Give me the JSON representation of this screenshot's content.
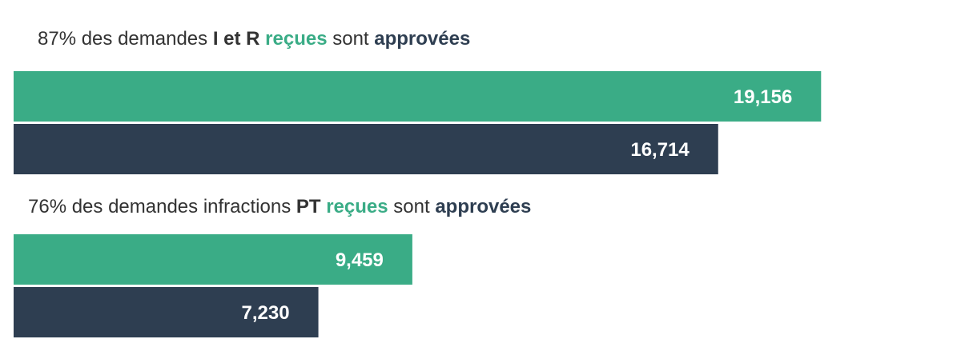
{
  "chart_data": [
    {
      "type": "bar",
      "orientation": "horizontal",
      "title_parts": [
        {
          "text": "87% des demandes ",
          "style": "plain"
        },
        {
          "text": "I et R",
          "style": "bold"
        },
        {
          "text": " ",
          "style": "plain"
        },
        {
          "text": "reçues",
          "style": "accent"
        },
        {
          "text": " sont ",
          "style": "plain"
        },
        {
          "text": "approvées",
          "style": "strong"
        }
      ],
      "values": [
        19156,
        16714
      ],
      "value_labels": [
        "19,156",
        "16,714"
      ],
      "colors": [
        "#3aac86",
        "#2e3e51"
      ],
      "xlim": [
        0,
        22000
      ]
    },
    {
      "type": "bar",
      "orientation": "horizontal",
      "title_parts": [
        {
          "text": "76% des demandes infractions ",
          "style": "plain"
        },
        {
          "text": "PT",
          "style": "bold"
        },
        {
          "text": " ",
          "style": "plain"
        },
        {
          "text": "reçues",
          "style": "accent"
        },
        {
          "text": " sont ",
          "style": "plain"
        },
        {
          "text": "approvées",
          "style": "strong"
        }
      ],
      "values": [
        9459,
        7230
      ],
      "value_labels": [
        "9,459",
        "7,230"
      ],
      "colors": [
        "#3aac86",
        "#2e3e51"
      ],
      "xlim": [
        0,
        22000
      ]
    }
  ]
}
